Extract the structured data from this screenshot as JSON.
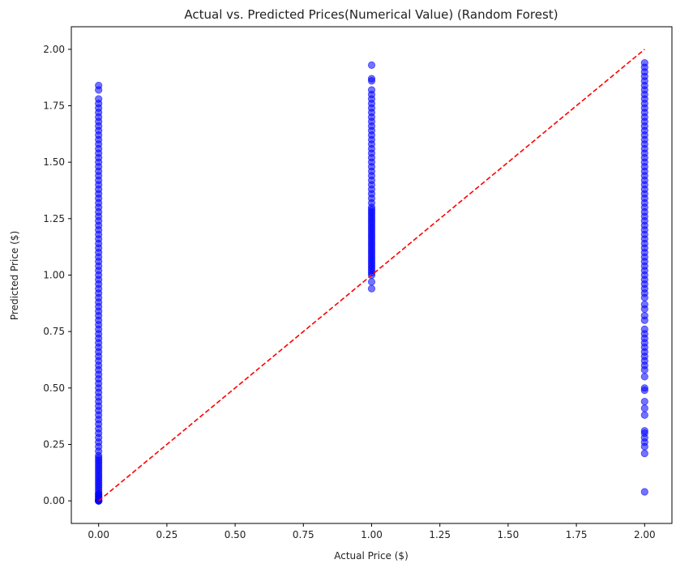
{
  "chart_data": {
    "type": "scatter",
    "title": "Actual vs. Predicted Prices(Numerical Value) (Random Forest)",
    "xlabel": "Actual Price ($)",
    "ylabel": "Predicted Price ($)",
    "xlim": [
      -0.1,
      2.1
    ],
    "ylim": [
      -0.1,
      2.1
    ],
    "xticks": [
      "0.00",
      "0.25",
      "0.50",
      "0.75",
      "1.00",
      "1.25",
      "1.50",
      "1.75",
      "2.00"
    ],
    "yticks": [
      "0.00",
      "0.25",
      "0.50",
      "0.75",
      "1.00",
      "1.25",
      "1.50",
      "1.75",
      "2.00"
    ],
    "grid": false,
    "point_color": "#0000ff",
    "line_color": "#ff0000",
    "reference_line": {
      "style": "dashed",
      "from": [
        0,
        0
      ],
      "to": [
        2,
        2
      ]
    },
    "series": [
      {
        "x_value": 0,
        "points": [
          0.0,
          0.0,
          0.0,
          0.0,
          0.01,
          0.01,
          0.02,
          0.02,
          0.03,
          0.03,
          0.04,
          0.05,
          0.06,
          0.07,
          0.08,
          0.09,
          0.1,
          0.11,
          0.12,
          0.13,
          0.14,
          0.15,
          0.16,
          0.17,
          0.18,
          0.19,
          0.2,
          0.22,
          0.24,
          0.26,
          0.28,
          0.3,
          0.32,
          0.34,
          0.36,
          0.38,
          0.4,
          0.42,
          0.44,
          0.46,
          0.48,
          0.5,
          0.52,
          0.54,
          0.56,
          0.58,
          0.6,
          0.62,
          0.64,
          0.66,
          0.68,
          0.7,
          0.72,
          0.74,
          0.76,
          0.78,
          0.8,
          0.82,
          0.84,
          0.86,
          0.88,
          0.9,
          0.92,
          0.94,
          0.96,
          0.98,
          1.0,
          1.02,
          1.04,
          1.06,
          1.08,
          1.1,
          1.12,
          1.14,
          1.16,
          1.18,
          1.2,
          1.22,
          1.24,
          1.26,
          1.28,
          1.3,
          1.32,
          1.34,
          1.36,
          1.38,
          1.4,
          1.42,
          1.44,
          1.46,
          1.48,
          1.5,
          1.52,
          1.54,
          1.56,
          1.58,
          1.6,
          1.62,
          1.64,
          1.66,
          1.68,
          1.7,
          1.72,
          1.74,
          1.76,
          1.78,
          1.82,
          1.84
        ]
      },
      {
        "x_value": 1,
        "points": [
          0.94,
          0.97,
          1.0,
          1.01,
          1.02,
          1.03,
          1.04,
          1.05,
          1.06,
          1.07,
          1.08,
          1.09,
          1.1,
          1.11,
          1.12,
          1.13,
          1.14,
          1.15,
          1.16,
          1.17,
          1.18,
          1.19,
          1.2,
          1.21,
          1.22,
          1.23,
          1.24,
          1.25,
          1.26,
          1.27,
          1.28,
          1.29,
          1.3,
          1.32,
          1.34,
          1.36,
          1.38,
          1.4,
          1.42,
          1.44,
          1.46,
          1.48,
          1.5,
          1.52,
          1.54,
          1.56,
          1.58,
          1.6,
          1.62,
          1.64,
          1.66,
          1.68,
          1.7,
          1.72,
          1.74,
          1.76,
          1.78,
          1.8,
          1.82,
          1.86,
          1.87,
          1.93
        ]
      },
      {
        "x_value": 2,
        "points": [
          0.04,
          0.21,
          0.24,
          0.26,
          0.28,
          0.3,
          0.31,
          0.38,
          0.41,
          0.44,
          0.49,
          0.5,
          0.55,
          0.58,
          0.6,
          0.62,
          0.64,
          0.66,
          0.68,
          0.7,
          0.72,
          0.74,
          0.76,
          0.8,
          0.82,
          0.85,
          0.87,
          0.9,
          0.92,
          0.94,
          0.96,
          0.98,
          1.0,
          1.02,
          1.04,
          1.06,
          1.08,
          1.1,
          1.12,
          1.14,
          1.16,
          1.18,
          1.2,
          1.22,
          1.24,
          1.26,
          1.28,
          1.3,
          1.32,
          1.34,
          1.36,
          1.38,
          1.4,
          1.42,
          1.44,
          1.46,
          1.48,
          1.5,
          1.52,
          1.54,
          1.56,
          1.58,
          1.6,
          1.62,
          1.64,
          1.66,
          1.68,
          1.7,
          1.72,
          1.74,
          1.76,
          1.78,
          1.8,
          1.82,
          1.84,
          1.86,
          1.88,
          1.9,
          1.92,
          1.94
        ]
      }
    ]
  }
}
